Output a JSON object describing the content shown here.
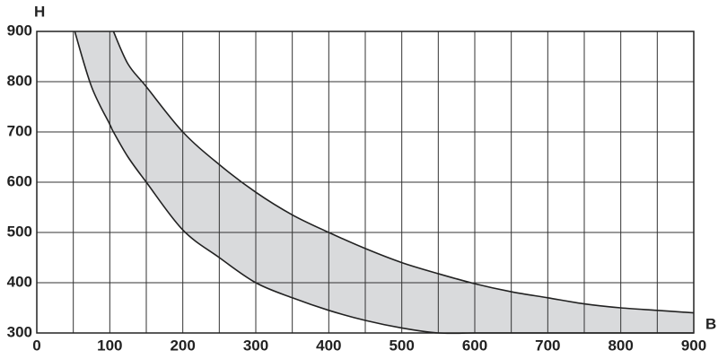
{
  "chart_data": {
    "type": "band",
    "x_label": "B",
    "y_label": "H",
    "x": [
      52,
      75,
      100,
      105,
      125,
      150,
      200,
      250,
      300,
      350,
      400,
      450,
      500,
      550,
      600,
      650,
      700,
      750,
      800,
      850,
      900
    ],
    "series": [
      {
        "color": "#222222",
        "values": [
          900,
          790,
          715,
          700,
          650,
          600,
          505,
          450,
          400,
          370,
          345,
          325,
          310,
          300,
          300,
          300,
          300,
          300,
          300,
          300,
          300
        ]
      },
      {
        "color": "#222222",
        "values": [
          null,
          null,
          null,
          900,
          835,
          790,
          700,
          635,
          580,
          535,
          500,
          468,
          440,
          418,
          398,
          382,
          370,
          358,
          350,
          345,
          340
        ]
      }
    ],
    "band_color": "#d9dadc",
    "xlim": [
      0,
      900
    ],
    "ylim": [
      300,
      900
    ],
    "xticks": [
      0,
      100,
      200,
      300,
      400,
      500,
      600,
      700,
      800,
      900
    ],
    "xminorticks": [
      50,
      150,
      250,
      350,
      450,
      550,
      650,
      750,
      850
    ],
    "yticks": [
      300,
      400,
      500,
      600,
      700,
      800,
      900
    ],
    "grid": true
  }
}
